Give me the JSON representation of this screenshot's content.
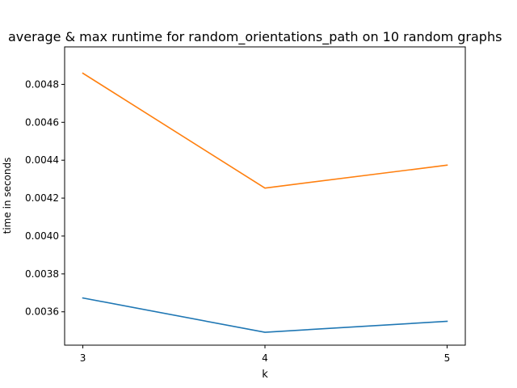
{
  "chart_data": {
    "type": "line",
    "title": "average & max runtime for random_orientations_path on 10 random graphs",
    "xlabel": "k",
    "ylabel": "time in seconds",
    "x": [
      3,
      4,
      5
    ],
    "xticks": [
      "3",
      "4",
      "5"
    ],
    "yticks": [
      "0.0036",
      "0.0038",
      "0.0040",
      "0.0042",
      "0.0044",
      "0.0046",
      "0.0048"
    ],
    "ytick_values": [
      0.0036,
      0.0038,
      0.004,
      0.0042,
      0.0044,
      0.0046,
      0.0048
    ],
    "xlim": [
      2.9,
      5.1
    ],
    "ylim": [
      0.003424,
      0.004998
    ],
    "grid": false,
    "series": [
      {
        "values": [
          0.003673,
          0.003492,
          0.00355
        ],
        "color": "#1f77b4"
      },
      {
        "values": [
          0.004859,
          0.004253,
          0.004374
        ],
        "color": "#ff7f0e"
      }
    ]
  }
}
